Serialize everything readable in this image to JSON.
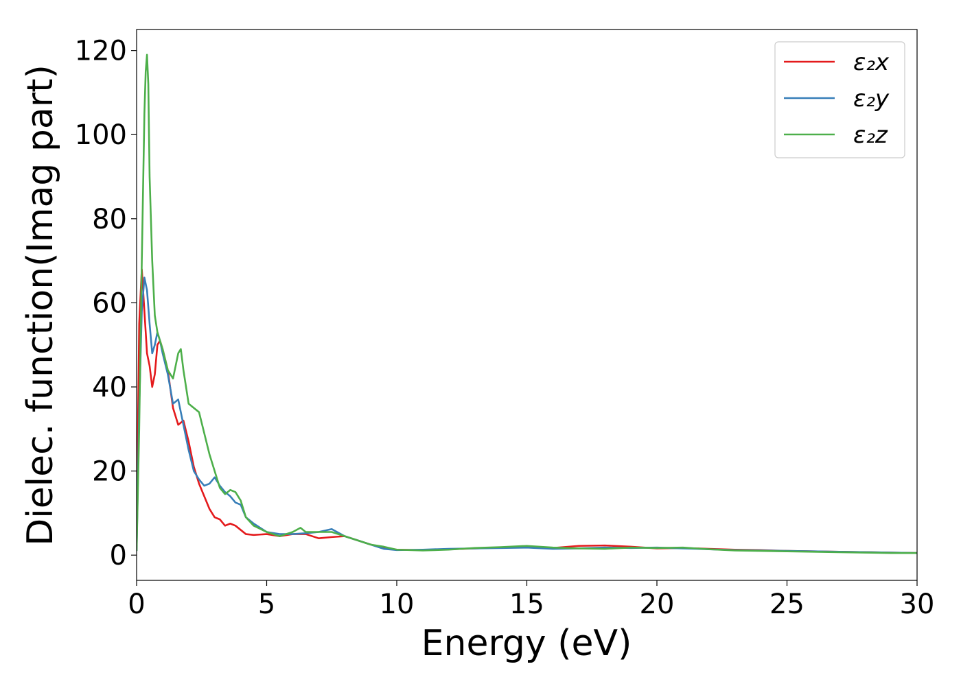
{
  "chart_data": {
    "type": "line",
    "xlabel": "Energy (eV)",
    "ylabel": "Dielec. function(Imag part)",
    "xlim": [
      0,
      30
    ],
    "ylim": [
      -6,
      125
    ],
    "xticks": [
      0,
      5,
      10,
      15,
      20,
      25,
      30
    ],
    "yticks": [
      0,
      20,
      40,
      60,
      80,
      100,
      120
    ],
    "grid": false,
    "legend_position": "top-right",
    "series": [
      {
        "name": "ε₂x",
        "color": "#e41a1c",
        "x": [
          0,
          0.1,
          0.2,
          0.3,
          0.4,
          0.5,
          0.6,
          0.7,
          0.8,
          0.9,
          1.0,
          1.2,
          1.4,
          1.6,
          1.8,
          2.0,
          2.2,
          2.4,
          2.6,
          2.8,
          3.0,
          3.2,
          3.4,
          3.6,
          3.8,
          4.0,
          4.2,
          4.5,
          5.0,
          5.5,
          6.0,
          6.5,
          7.0,
          7.5,
          8.0,
          8.5,
          9.0,
          9.5,
          10.0,
          11.0,
          12.0,
          13.0,
          14.0,
          15.0,
          16.0,
          17.0,
          18.0,
          19.0,
          20.0,
          21.0,
          22.0,
          23.0,
          24.0,
          25.0,
          26.0,
          27.0,
          28.0,
          29.0,
          30.0
        ],
        "y": [
          2,
          55,
          68,
          58,
          48,
          45,
          40,
          43,
          50,
          51,
          49,
          44,
          35,
          31,
          32,
          27,
          21,
          17,
          14,
          11,
          9,
          8.5,
          7,
          7.5,
          7,
          6,
          5,
          4.8,
          5,
          4.5,
          5,
          5,
          4,
          4.3,
          4.5,
          3.5,
          2.5,
          1.8,
          1.3,
          1.2,
          1.4,
          1.6,
          1.8,
          1.9,
          1.7,
          2.2,
          2.3,
          2.0,
          1.6,
          1.7,
          1.5,
          1.3,
          1.2,
          1.0,
          0.9,
          0.8,
          0.7,
          0.6,
          0.5
        ]
      },
      {
        "name": "ε₂y",
        "color": "#377eb8",
        "x": [
          0,
          0.1,
          0.2,
          0.3,
          0.4,
          0.5,
          0.6,
          0.7,
          0.8,
          0.9,
          1.0,
          1.2,
          1.4,
          1.6,
          1.8,
          2.0,
          2.2,
          2.4,
          2.6,
          2.8,
          3.0,
          3.2,
          3.4,
          3.6,
          3.8,
          4.0,
          4.2,
          4.5,
          5.0,
          5.5,
          6.0,
          6.5,
          7.0,
          7.5,
          8.0,
          8.5,
          9.0,
          9.5,
          10.0,
          11.0,
          12.0,
          13.0,
          14.0,
          15.0,
          16.0,
          17.0,
          18.0,
          19.0,
          20.0,
          21.0,
          22.0,
          23.0,
          24.0,
          25.0,
          26.0,
          27.0,
          28.0,
          29.0,
          30.0
        ],
        "y": [
          1,
          35,
          58,
          66,
          63,
          55,
          48,
          50,
          53,
          51,
          48,
          43,
          36,
          37,
          31,
          25,
          20,
          18,
          16.5,
          17,
          18.5,
          16.5,
          15,
          14,
          12.5,
          12,
          9,
          7.5,
          5.5,
          5,
          5,
          5.2,
          5.5,
          6.2,
          4.5,
          3.5,
          2.5,
          1.5,
          1.2,
          1.3,
          1.5,
          1.6,
          1.7,
          1.8,
          1.5,
          1.6,
          1.8,
          1.7,
          1.8,
          1.6,
          1.4,
          1.2,
          1.1,
          1.0,
          0.9,
          0.8,
          0.7,
          0.6,
          0.5
        ]
      },
      {
        "name": "ε₂z",
        "color": "#4daf4a",
        "x": [
          0,
          0.1,
          0.2,
          0.3,
          0.35,
          0.4,
          0.45,
          0.5,
          0.6,
          0.7,
          0.8,
          0.9,
          1.0,
          1.2,
          1.4,
          1.6,
          1.7,
          1.8,
          2.0,
          2.2,
          2.4,
          2.6,
          2.8,
          3.0,
          3.2,
          3.4,
          3.6,
          3.8,
          4.0,
          4.2,
          4.5,
          5.0,
          5.5,
          6.0,
          6.3,
          6.5,
          7.0,
          7.5,
          8.0,
          8.5,
          9.0,
          9.5,
          10.0,
          11.0,
          12.0,
          13.0,
          14.0,
          15.0,
          16.0,
          17.0,
          18.0,
          19.0,
          20.0,
          21.0,
          22.0,
          23.0,
          24.0,
          25.0,
          26.0,
          27.0,
          28.0,
          29.0,
          30.0
        ],
        "y": [
          1,
          30,
          70,
          105,
          115,
          119,
          112,
          90,
          70,
          57,
          53,
          51,
          49,
          44,
          42,
          48,
          49,
          44,
          36,
          35,
          34,
          29,
          24,
          20,
          16,
          14.5,
          15.5,
          15,
          13,
          9,
          7,
          5.5,
          4.5,
          5.5,
          6.5,
          5.5,
          5.5,
          5.5,
          4.5,
          3.5,
          2.5,
          2,
          1.3,
          1.1,
          1.3,
          1.7,
          1.9,
          2.2,
          1.8,
          1.6,
          1.5,
          1.8,
          1.7,
          1.8,
          1.4,
          1.1,
          1.0,
          0.9,
          0.8,
          0.7,
          0.6,
          0.5,
          0.5
        ]
      }
    ]
  }
}
